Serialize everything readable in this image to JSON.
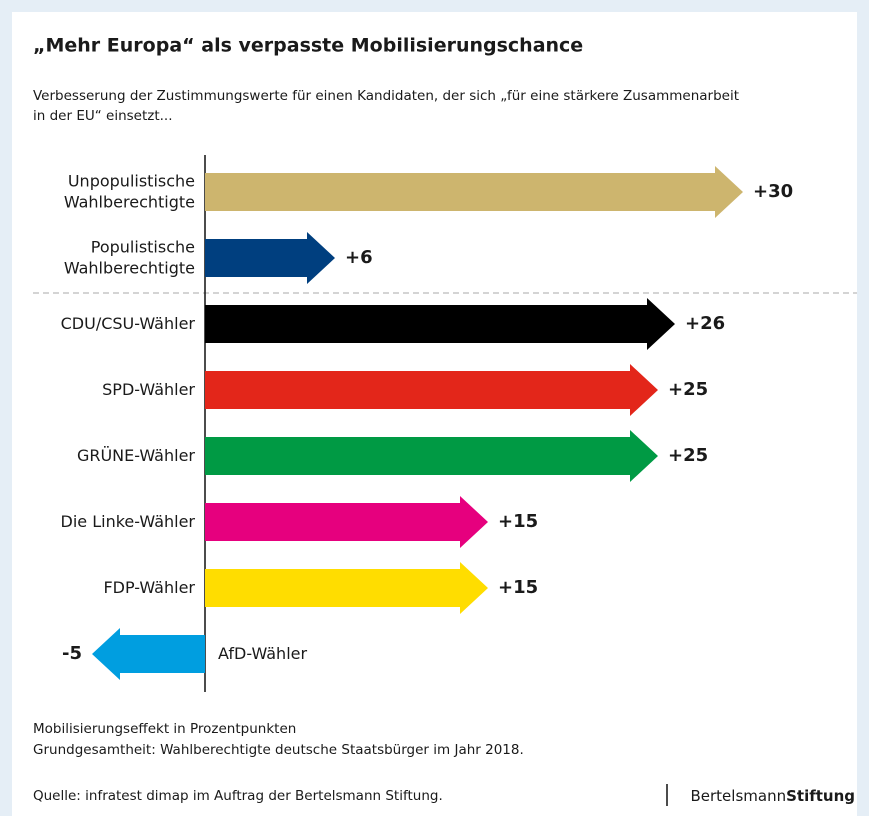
{
  "chart_data": {
    "type": "arrow-bar",
    "title": "„Mehr Europa“ als verpasste Mobilisierungschance",
    "subtitle": [
      "Verbesserung der Zustimmungswerte für einen Kandidaten, der sich „für eine stärkere Zusammenarbeit",
      "in der EU“ einsetzt..."
    ],
    "categories": [
      [
        "Unpopulistische",
        "Wahlberechtigte"
      ],
      [
        "Populistische",
        "Wahlberechtigte"
      ],
      [
        "CDU/CSU-Wähler"
      ],
      [
        "SPD-Wähler"
      ],
      [
        "GRÜNE-Wähler"
      ],
      [
        "Die Linke-Wähler"
      ],
      [
        "FDP-Wähler"
      ],
      [
        "AfD-Wähler"
      ]
    ],
    "values": [
      30,
      6,
      26,
      25,
      25,
      15,
      15,
      -5
    ],
    "value_labels": [
      "+30",
      "+6",
      "+26",
      "+25",
      "+25",
      "+15",
      "+15",
      "-5"
    ],
    "colors": [
      "#cdb56e",
      "#003f7f",
      "#000000",
      "#e3261a",
      "#009a44",
      "#e6007e",
      "#ffdd00",
      "#009ee0"
    ],
    "notes": [
      "Mobilisierungseffekt in Prozentpunkten",
      "Grundgesamtheit: Wahlberechtigte deutsche Staatsbürger im Jahr 2018."
    ],
    "source": "Quelle: infratest dimap im Auftrag der Bertelsmann Stiftung.",
    "brand": [
      "Bertelsmann",
      "Stiftung"
    ]
  }
}
